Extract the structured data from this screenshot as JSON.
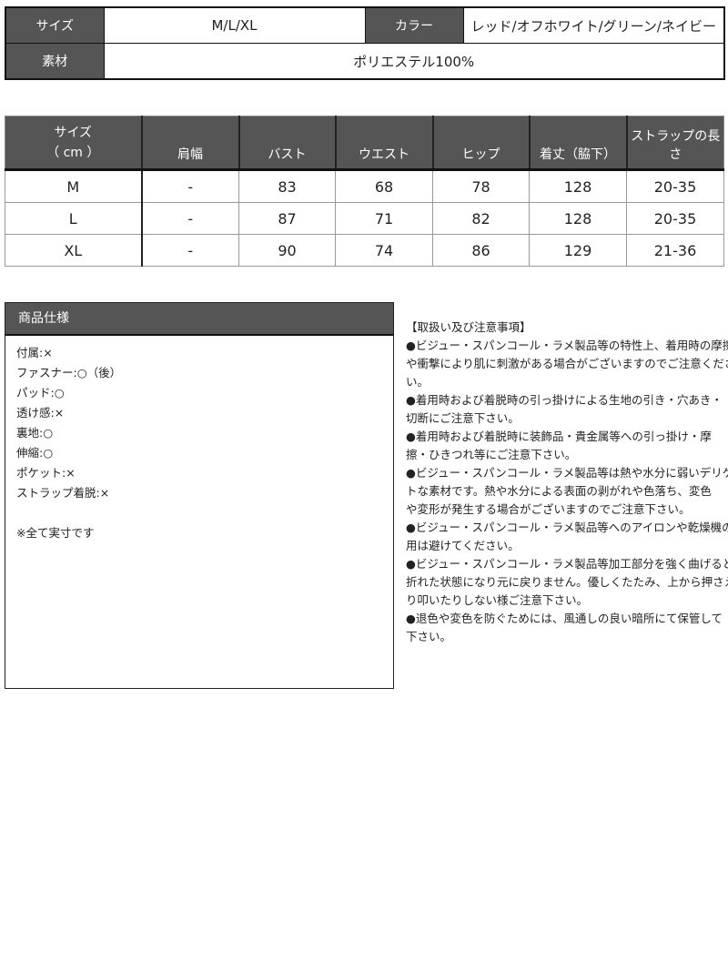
{
  "summary": {
    "size_label": "サイズ",
    "size_value": "M/L/XL",
    "color_label": "カラー",
    "color_value": "レッド/オフホワイト/グリーン/ネイビー",
    "material_label": "素材",
    "material_value": "ポリエステル100%"
  },
  "size_table": {
    "header_size_line1": "サイズ",
    "header_size_line2": "（ cm ）",
    "columns": [
      "肩幅",
      "バスト",
      "ウエスト",
      "ヒップ",
      "着丈（脇下）",
      "ストラップの長さ"
    ],
    "rows": [
      {
        "size": "M",
        "values": [
          "-",
          "83",
          "68",
          "78",
          "128",
          "20-35"
        ]
      },
      {
        "size": "L",
        "values": [
          "-",
          "87",
          "71",
          "82",
          "128",
          "20-35"
        ]
      },
      {
        "size": "XL",
        "values": [
          "-",
          "90",
          "74",
          "86",
          "129",
          "21-36"
        ]
      }
    ]
  },
  "spec": {
    "title": "商品仕様",
    "items": [
      "付属:×",
      "ファスナー:○（後）",
      "パッド:○",
      "透け感:×",
      "裏地:○",
      "伸縮:○",
      "ポケット:×",
      "ストラップ着脱:×"
    ],
    "note": "※全て実寸です"
  },
  "notes": {
    "lines": [
      "【取扱い及び注意事項】",
      "●ビジュー・スパンコール・ラメ製品等の特性上、着用時の摩擦",
      "や衝撃により肌に刺激がある場合がございますのでご注意くださ",
      "い。",
      "●着用時および着脱時の引っ掛けによる生地の引き・穴あき・",
      "切断にご注意下さい。",
      "●着用時および着脱時に装飾品・貴金属等への引っ掛け・摩",
      "擦・ひきつれ等にご注意下さい。",
      "●ビジュー・スパンコール・ラメ製品等は熱や水分に弱いデリケー",
      "トな素材です。熱や水分による表面の剥がれや色落ち、変色",
      "や変形が発生する場合がございますのでご注意下さい。",
      "●ビジュー・スパンコール・ラメ製品等へのアイロンや乾燥機の使",
      "用は避けてください。",
      "●ビジュー・スパンコール・ラメ製品等加工部分を強く曲げると",
      "折れた状態になり元に戻りません。優しくたたみ、上から押さえた",
      "り叩いたりしない様ご注意下さい。",
      "●退色や変色を防ぐためには、風通しの良い暗所にて保管して",
      "下さい。"
    ]
  },
  "colors": {
    "header_bg": "#555555",
    "header_text": "#ffffff",
    "border": "#111111"
  }
}
